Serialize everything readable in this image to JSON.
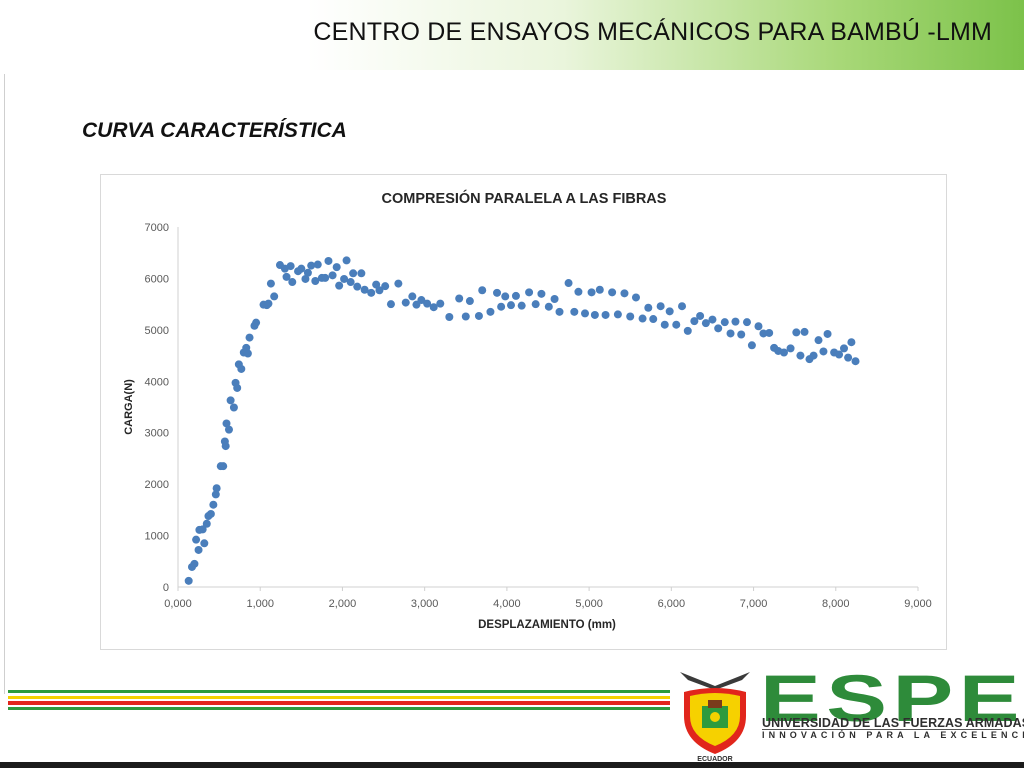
{
  "header": {
    "title": "CENTRO DE ENSAYOS MECÁNICOS PARA BAMBÚ -LMM"
  },
  "section": {
    "title": "CURVA CARACTERÍSTICA"
  },
  "logo": {
    "name": "ESPE",
    "line1": "UNIVERSIDAD DE LAS FUERZAS ARMADAS",
    "line2": "INNOVACIÓN PARA LA EXCELENCIA",
    "seal_text": "ECUADOR",
    "brand_color": "#2e8b3a"
  },
  "colors": {
    "point": "#4a7ebb",
    "header_green": "#7cc24a",
    "stripe_green": "#2e9b3e",
    "stripe_red": "#e1261c",
    "stripe_yellow": "#f6d100"
  },
  "chart_data": {
    "type": "scatter",
    "title": "COMPRESIÓN PARALELA A LAS FIBRAS",
    "xlabel": "DESPLAZAMIENTO (mm)",
    "ylabel": "CARGA(N)",
    "xlim": [
      0,
      9
    ],
    "ylim": [
      0,
      7000
    ],
    "x_ticks": [
      "0,000",
      "1,000",
      "2,000",
      "3,000",
      "4,000",
      "5,000",
      "6,000",
      "7,000",
      "8,000",
      "9,000"
    ],
    "y_ticks": [
      "0",
      "1000",
      "2000",
      "3000",
      "4000",
      "5000",
      "6000",
      "7000"
    ],
    "grid": false,
    "legend": "none",
    "series": [
      {
        "points": [
          [
            0.13,
            120
          ],
          [
            0.17,
            390
          ],
          [
            0.2,
            450
          ],
          [
            0.22,
            920
          ],
          [
            0.25,
            720
          ],
          [
            0.26,
            1110
          ],
          [
            0.3,
            1120
          ],
          [
            0.32,
            850
          ],
          [
            0.35,
            1230
          ],
          [
            0.37,
            1380
          ],
          [
            0.4,
            1420
          ],
          [
            0.43,
            1600
          ],
          [
            0.46,
            1800
          ],
          [
            0.47,
            1920
          ],
          [
            0.52,
            2350
          ],
          [
            0.55,
            2350
          ],
          [
            0.57,
            2830
          ],
          [
            0.58,
            2740
          ],
          [
            0.59,
            3180
          ],
          [
            0.62,
            3060
          ],
          [
            0.64,
            3630
          ],
          [
            0.68,
            3490
          ],
          [
            0.7,
            3970
          ],
          [
            0.72,
            3870
          ],
          [
            0.74,
            4330
          ],
          [
            0.77,
            4240
          ],
          [
            0.8,
            4560
          ],
          [
            0.83,
            4650
          ],
          [
            0.85,
            4540
          ],
          [
            0.87,
            4850
          ],
          [
            0.93,
            5080
          ],
          [
            0.95,
            5140
          ],
          [
            1.04,
            5490
          ],
          [
            1.08,
            5480
          ],
          [
            1.1,
            5510
          ],
          [
            1.13,
            5900
          ],
          [
            1.17,
            5650
          ],
          [
            1.24,
            6260
          ],
          [
            1.3,
            6190
          ],
          [
            1.32,
            6030
          ],
          [
            1.37,
            6240
          ],
          [
            1.39,
            5930
          ],
          [
            1.46,
            6140
          ],
          [
            1.5,
            6190
          ],
          [
            1.55,
            5990
          ],
          [
            1.58,
            6110
          ],
          [
            1.62,
            6250
          ],
          [
            1.67,
            5950
          ],
          [
            1.7,
            6270
          ],
          [
            1.75,
            6010
          ],
          [
            1.79,
            6010
          ],
          [
            1.83,
            6340
          ],
          [
            1.88,
            6060
          ],
          [
            1.93,
            6220
          ],
          [
            1.96,
            5860
          ],
          [
            2.02,
            5990
          ],
          [
            2.05,
            6350
          ],
          [
            2.1,
            5930
          ],
          [
            2.13,
            6100
          ],
          [
            2.18,
            5840
          ],
          [
            2.23,
            6100
          ],
          [
            2.27,
            5780
          ],
          [
            2.35,
            5720
          ],
          [
            2.41,
            5880
          ],
          [
            2.45,
            5770
          ],
          [
            2.52,
            5850
          ],
          [
            2.59,
            5500
          ],
          [
            2.68,
            5900
          ],
          [
            2.77,
            5530
          ],
          [
            2.85,
            5650
          ],
          [
            2.9,
            5490
          ],
          [
            2.96,
            5580
          ],
          [
            3.03,
            5510
          ],
          [
            3.11,
            5440
          ],
          [
            3.19,
            5510
          ],
          [
            3.3,
            5250
          ],
          [
            3.42,
            5610
          ],
          [
            3.5,
            5260
          ],
          [
            3.55,
            5560
          ],
          [
            3.66,
            5270
          ],
          [
            3.7,
            5770
          ],
          [
            3.8,
            5350
          ],
          [
            3.88,
            5720
          ],
          [
            3.93,
            5450
          ],
          [
            3.98,
            5650
          ],
          [
            4.05,
            5480
          ],
          [
            4.11,
            5660
          ],
          [
            4.18,
            5470
          ],
          [
            4.27,
            5730
          ],
          [
            4.35,
            5500
          ],
          [
            4.42,
            5700
          ],
          [
            4.51,
            5450
          ],
          [
            4.58,
            5600
          ],
          [
            4.64,
            5350
          ],
          [
            4.75,
            5910
          ],
          [
            4.82,
            5350
          ],
          [
            4.87,
            5740
          ],
          [
            4.95,
            5320
          ],
          [
            5.03,
            5730
          ],
          [
            5.07,
            5290
          ],
          [
            5.13,
            5780
          ],
          [
            5.2,
            5290
          ],
          [
            5.28,
            5730
          ],
          [
            5.35,
            5300
          ],
          [
            5.43,
            5710
          ],
          [
            5.5,
            5260
          ],
          [
            5.57,
            5630
          ],
          [
            5.65,
            5220
          ],
          [
            5.72,
            5430
          ],
          [
            5.78,
            5210
          ],
          [
            5.87,
            5460
          ],
          [
            5.92,
            5100
          ],
          [
            5.98,
            5360
          ],
          [
            6.06,
            5100
          ],
          [
            6.13,
            5460
          ],
          [
            6.2,
            4980
          ],
          [
            6.28,
            5170
          ],
          [
            6.35,
            5270
          ],
          [
            6.42,
            5130
          ],
          [
            6.5,
            5200
          ],
          [
            6.57,
            5030
          ],
          [
            6.65,
            5150
          ],
          [
            6.72,
            4930
          ],
          [
            6.78,
            5160
          ],
          [
            6.85,
            4910
          ],
          [
            6.92,
            5150
          ],
          [
            6.98,
            4700
          ],
          [
            7.06,
            5070
          ],
          [
            7.12,
            4930
          ],
          [
            7.19,
            4940
          ],
          [
            7.25,
            4650
          ],
          [
            7.3,
            4590
          ],
          [
            7.37,
            4560
          ],
          [
            7.45,
            4640
          ],
          [
            7.52,
            4950
          ],
          [
            7.57,
            4500
          ],
          [
            7.62,
            4960
          ],
          [
            7.68,
            4430
          ],
          [
            7.73,
            4500
          ],
          [
            7.79,
            4800
          ],
          [
            7.85,
            4580
          ],
          [
            7.9,
            4920
          ],
          [
            7.98,
            4560
          ],
          [
            8.04,
            4520
          ],
          [
            8.1,
            4640
          ],
          [
            8.15,
            4460
          ],
          [
            8.19,
            4760
          ],
          [
            8.24,
            4390
          ]
        ]
      }
    ]
  }
}
